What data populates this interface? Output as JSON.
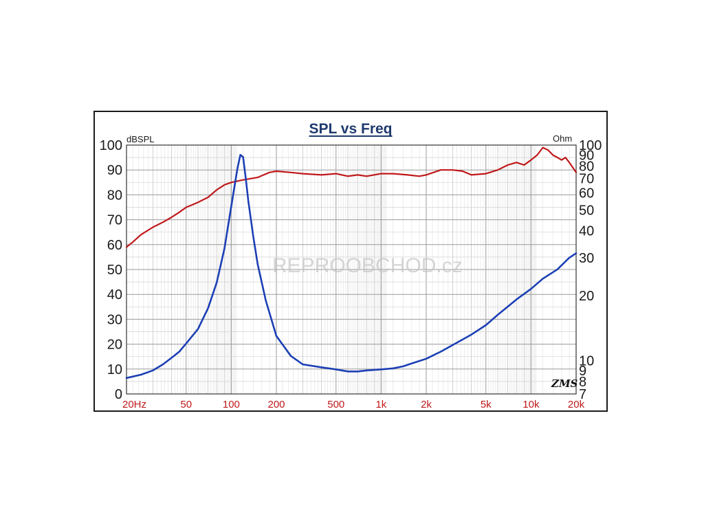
{
  "chart_data": {
    "type": "line",
    "title": "SPL vs Freq",
    "x_scale": "log",
    "xlim": [
      20,
      20000
    ],
    "x_ticks": [
      {
        "value": 20,
        "label": "20Hz"
      },
      {
        "value": 50,
        "label": "50"
      },
      {
        "value": 100,
        "label": "100"
      },
      {
        "value": 200,
        "label": "200"
      },
      {
        "value": 500,
        "label": "500"
      },
      {
        "value": 1000,
        "label": "1k"
      },
      {
        "value": 2000,
        "label": "2k"
      },
      {
        "value": 5000,
        "label": "5k"
      },
      {
        "value": 10000,
        "label": "10k"
      },
      {
        "value": 20000,
        "label": "20k"
      }
    ],
    "y_left": {
      "label": "dBSPL",
      "ylim": [
        0,
        100
      ],
      "ticks": [
        "0",
        "10",
        "20",
        "30",
        "40",
        "50",
        "60",
        "70",
        "80",
        "90",
        "100"
      ]
    },
    "y_right": {
      "label": "Ohm",
      "scale": "log",
      "ylim": [
        7,
        100
      ],
      "ticks": [
        {
          "value": 7,
          "label": "7"
        },
        {
          "value": 8,
          "label": "8"
        },
        {
          "value": 9,
          "label": "9"
        },
        {
          "value": 10,
          "label": "10"
        },
        {
          "value": 20,
          "label": "20"
        },
        {
          "value": 30,
          "label": "30"
        },
        {
          "value": 40,
          "label": "40"
        },
        {
          "value": 50,
          "label": "50"
        },
        {
          "value": 60,
          "label": "60"
        },
        {
          "value": 70,
          "label": "70"
        },
        {
          "value": 80,
          "label": "80"
        },
        {
          "value": 90,
          "label": "90"
        },
        {
          "value": 100,
          "label": "100"
        }
      ]
    },
    "grid": true,
    "series": [
      {
        "axis": "left",
        "color": "#c0181a",
        "points": [
          [
            20,
            59
          ],
          [
            22,
            61
          ],
          [
            25,
            64
          ],
          [
            30,
            67
          ],
          [
            35,
            69
          ],
          [
            40,
            71
          ],
          [
            45,
            73
          ],
          [
            50,
            75
          ],
          [
            55,
            76
          ],
          [
            60,
            77
          ],
          [
            70,
            79
          ],
          [
            80,
            82
          ],
          [
            90,
            84
          ],
          [
            100,
            85
          ],
          [
            120,
            86
          ],
          [
            150,
            87
          ],
          [
            180,
            89
          ],
          [
            200,
            89.5
          ],
          [
            250,
            89
          ],
          [
            300,
            88.5
          ],
          [
            400,
            88
          ],
          [
            500,
            88.5
          ],
          [
            600,
            87.5
          ],
          [
            700,
            88
          ],
          [
            800,
            87.5
          ],
          [
            1000,
            88.5
          ],
          [
            1200,
            88.5
          ],
          [
            1500,
            88
          ],
          [
            1800,
            87.5
          ],
          [
            2000,
            88
          ],
          [
            2500,
            90
          ],
          [
            3000,
            90
          ],
          [
            3500,
            89.5
          ],
          [
            4000,
            88
          ],
          [
            5000,
            88.5
          ],
          [
            6000,
            90
          ],
          [
            7000,
            92
          ],
          [
            8000,
            93
          ],
          [
            9000,
            92
          ],
          [
            10000,
            94
          ],
          [
            11000,
            96
          ],
          [
            12000,
            99
          ],
          [
            13000,
            98
          ],
          [
            14000,
            96
          ],
          [
            15000,
            95
          ],
          [
            16000,
            94
          ],
          [
            17000,
            95
          ],
          [
            18000,
            93
          ],
          [
            19000,
            91
          ],
          [
            20000,
            89
          ]
        ]
      },
      {
        "axis": "right",
        "color": "#1b3fb5",
        "points": [
          [
            20,
            8.3
          ],
          [
            25,
            8.6
          ],
          [
            30,
            9.0
          ],
          [
            35,
            9.6
          ],
          [
            40,
            10.3
          ],
          [
            45,
            11.0
          ],
          [
            50,
            12.0
          ],
          [
            60,
            14.0
          ],
          [
            70,
            17.5
          ],
          [
            80,
            23
          ],
          [
            90,
            33
          ],
          [
            100,
            52
          ],
          [
            110,
            78
          ],
          [
            115,
            90
          ],
          [
            120,
            88
          ],
          [
            125,
            70
          ],
          [
            130,
            55
          ],
          [
            140,
            38
          ],
          [
            150,
            28
          ],
          [
            170,
            19
          ],
          [
            200,
            13
          ],
          [
            250,
            10.5
          ],
          [
            300,
            9.6
          ],
          [
            400,
            9.3
          ],
          [
            500,
            9.1
          ],
          [
            600,
            8.9
          ],
          [
            700,
            8.9
          ],
          [
            800,
            9.0
          ],
          [
            1000,
            9.1
          ],
          [
            1200,
            9.2
          ],
          [
            1400,
            9.4
          ],
          [
            1600,
            9.7
          ],
          [
            2000,
            10.2
          ],
          [
            2500,
            11.0
          ],
          [
            3000,
            11.8
          ],
          [
            4000,
            13.2
          ],
          [
            5000,
            14.6
          ],
          [
            6000,
            16.3
          ],
          [
            7000,
            17.8
          ],
          [
            8000,
            19.2
          ],
          [
            10000,
            21.5
          ],
          [
            12000,
            24
          ],
          [
            15000,
            26.5
          ],
          [
            18000,
            30
          ],
          [
            20000,
            31.5
          ]
        ]
      }
    ]
  },
  "watermark": "REPROOBCHOD.cz",
  "logo": "ZMS"
}
